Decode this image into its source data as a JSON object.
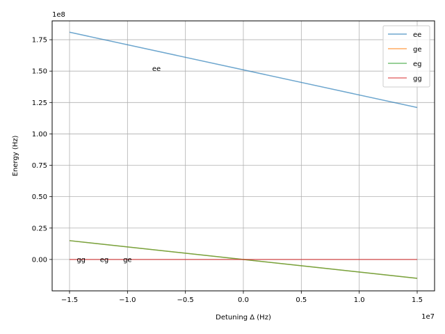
{
  "chart_data": {
    "type": "line",
    "xlabel": "Detuning Δ (Hz)",
    "ylabel": "Energy (Hz)",
    "x_exponent_label": "1e7",
    "y_exponent_label": "1e8",
    "xlim": [
      -1.65,
      1.65
    ],
    "ylim": [
      -0.25,
      1.9
    ],
    "x_scale_note": "x values in units of 1e7 Hz",
    "y_scale_note": "y values in units of 1e8 Hz",
    "x_ticks": [
      {
        "value": -1.5,
        "label": "−1.5"
      },
      {
        "value": -1.0,
        "label": "−1.0"
      },
      {
        "value": -0.5,
        "label": "−0.5"
      },
      {
        "value": 0.0,
        "label": "0.0"
      },
      {
        "value": 0.5,
        "label": "0.5"
      },
      {
        "value": 1.0,
        "label": "1.0"
      },
      {
        "value": 1.5,
        "label": "1.5"
      }
    ],
    "y_ticks": [
      {
        "value": 0.0,
        "label": "0.00"
      },
      {
        "value": 0.25,
        "label": "0.25"
      },
      {
        "value": 0.5,
        "label": "0.50"
      },
      {
        "value": 0.75,
        "label": "0.75"
      },
      {
        "value": 1.0,
        "label": "1.00"
      },
      {
        "value": 1.25,
        "label": "1.25"
      },
      {
        "value": 1.5,
        "label": "1.50"
      },
      {
        "value": 1.75,
        "label": "1.75"
      }
    ],
    "grid": true,
    "legend_position": "top-right",
    "series": [
      {
        "name": "ee",
        "color": "#1f77b4",
        "x": [
          -1.5,
          1.5
        ],
        "y": [
          1.81,
          1.21
        ]
      },
      {
        "name": "ge",
        "color": "#ff7f0e",
        "x": [
          -1.5,
          1.5
        ],
        "y": [
          0.15,
          -0.15
        ]
      },
      {
        "name": "eg",
        "color": "#2ca02c",
        "x": [
          -1.5,
          1.5
        ],
        "y": [
          0.15,
          -0.15
        ]
      },
      {
        "name": "gg",
        "color": "#d62728",
        "x": [
          -1.5,
          1.5
        ],
        "y": [
          0.0,
          0.0
        ]
      }
    ],
    "annotations": [
      {
        "text": "ee",
        "x": -0.75,
        "y": 1.5
      },
      {
        "text": "gg",
        "x": -1.4,
        "y": -0.02
      },
      {
        "text": "eg",
        "x": -1.2,
        "y": -0.02
      },
      {
        "text": "ge",
        "x": -1.0,
        "y": -0.02
      }
    ]
  }
}
